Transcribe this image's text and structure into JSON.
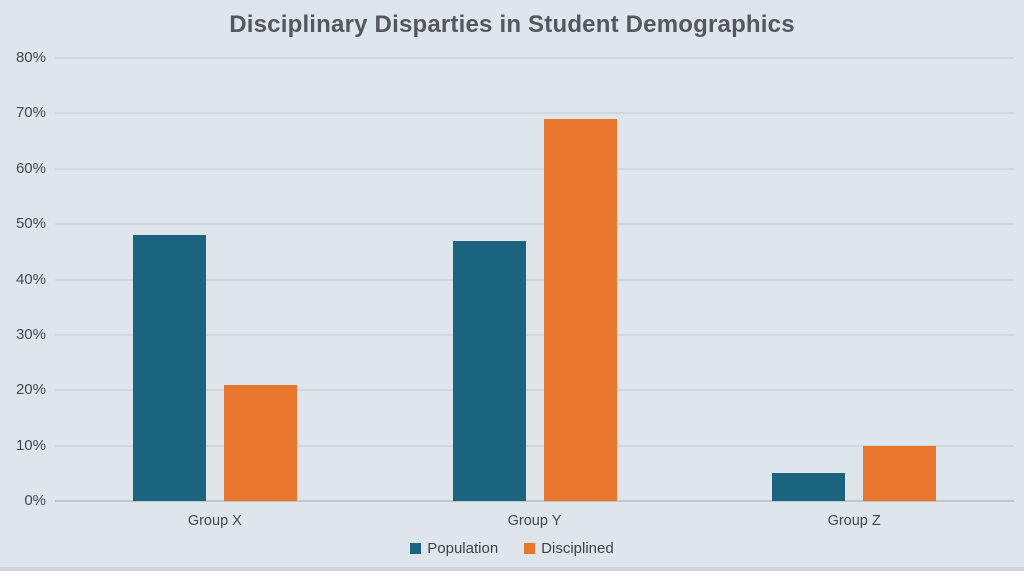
{
  "chart_data": {
    "type": "bar",
    "title": "Disciplinary Disparties in Student Demographics",
    "categories": [
      "Group X",
      "Group Y",
      "Group Z"
    ],
    "series": [
      {
        "name": "Population",
        "color": "#1A6480",
        "values": [
          48,
          47,
          5
        ]
      },
      {
        "name": "Disciplined",
        "color": "#E8762E",
        "values": [
          21,
          69,
          10
        ]
      }
    ],
    "y_axis": {
      "min": 0,
      "max": 80,
      "step": 10,
      "tick_labels": [
        "0%",
        "10%",
        "20%",
        "30%",
        "40%",
        "50%",
        "60%",
        "70%",
        "80%"
      ],
      "format": "percent"
    },
    "xlabel": "",
    "ylabel": "",
    "grid": true,
    "legend_position": "bottom",
    "colors": {
      "background": "#DEE6EC",
      "gridline": "#CFD8DE",
      "axis_line": "#BCC6CE",
      "title_text": "#54585D",
      "tick_text": "#45494D",
      "legend_text": "#3E4347",
      "bottom_strip": "#CBD5DB"
    }
  }
}
